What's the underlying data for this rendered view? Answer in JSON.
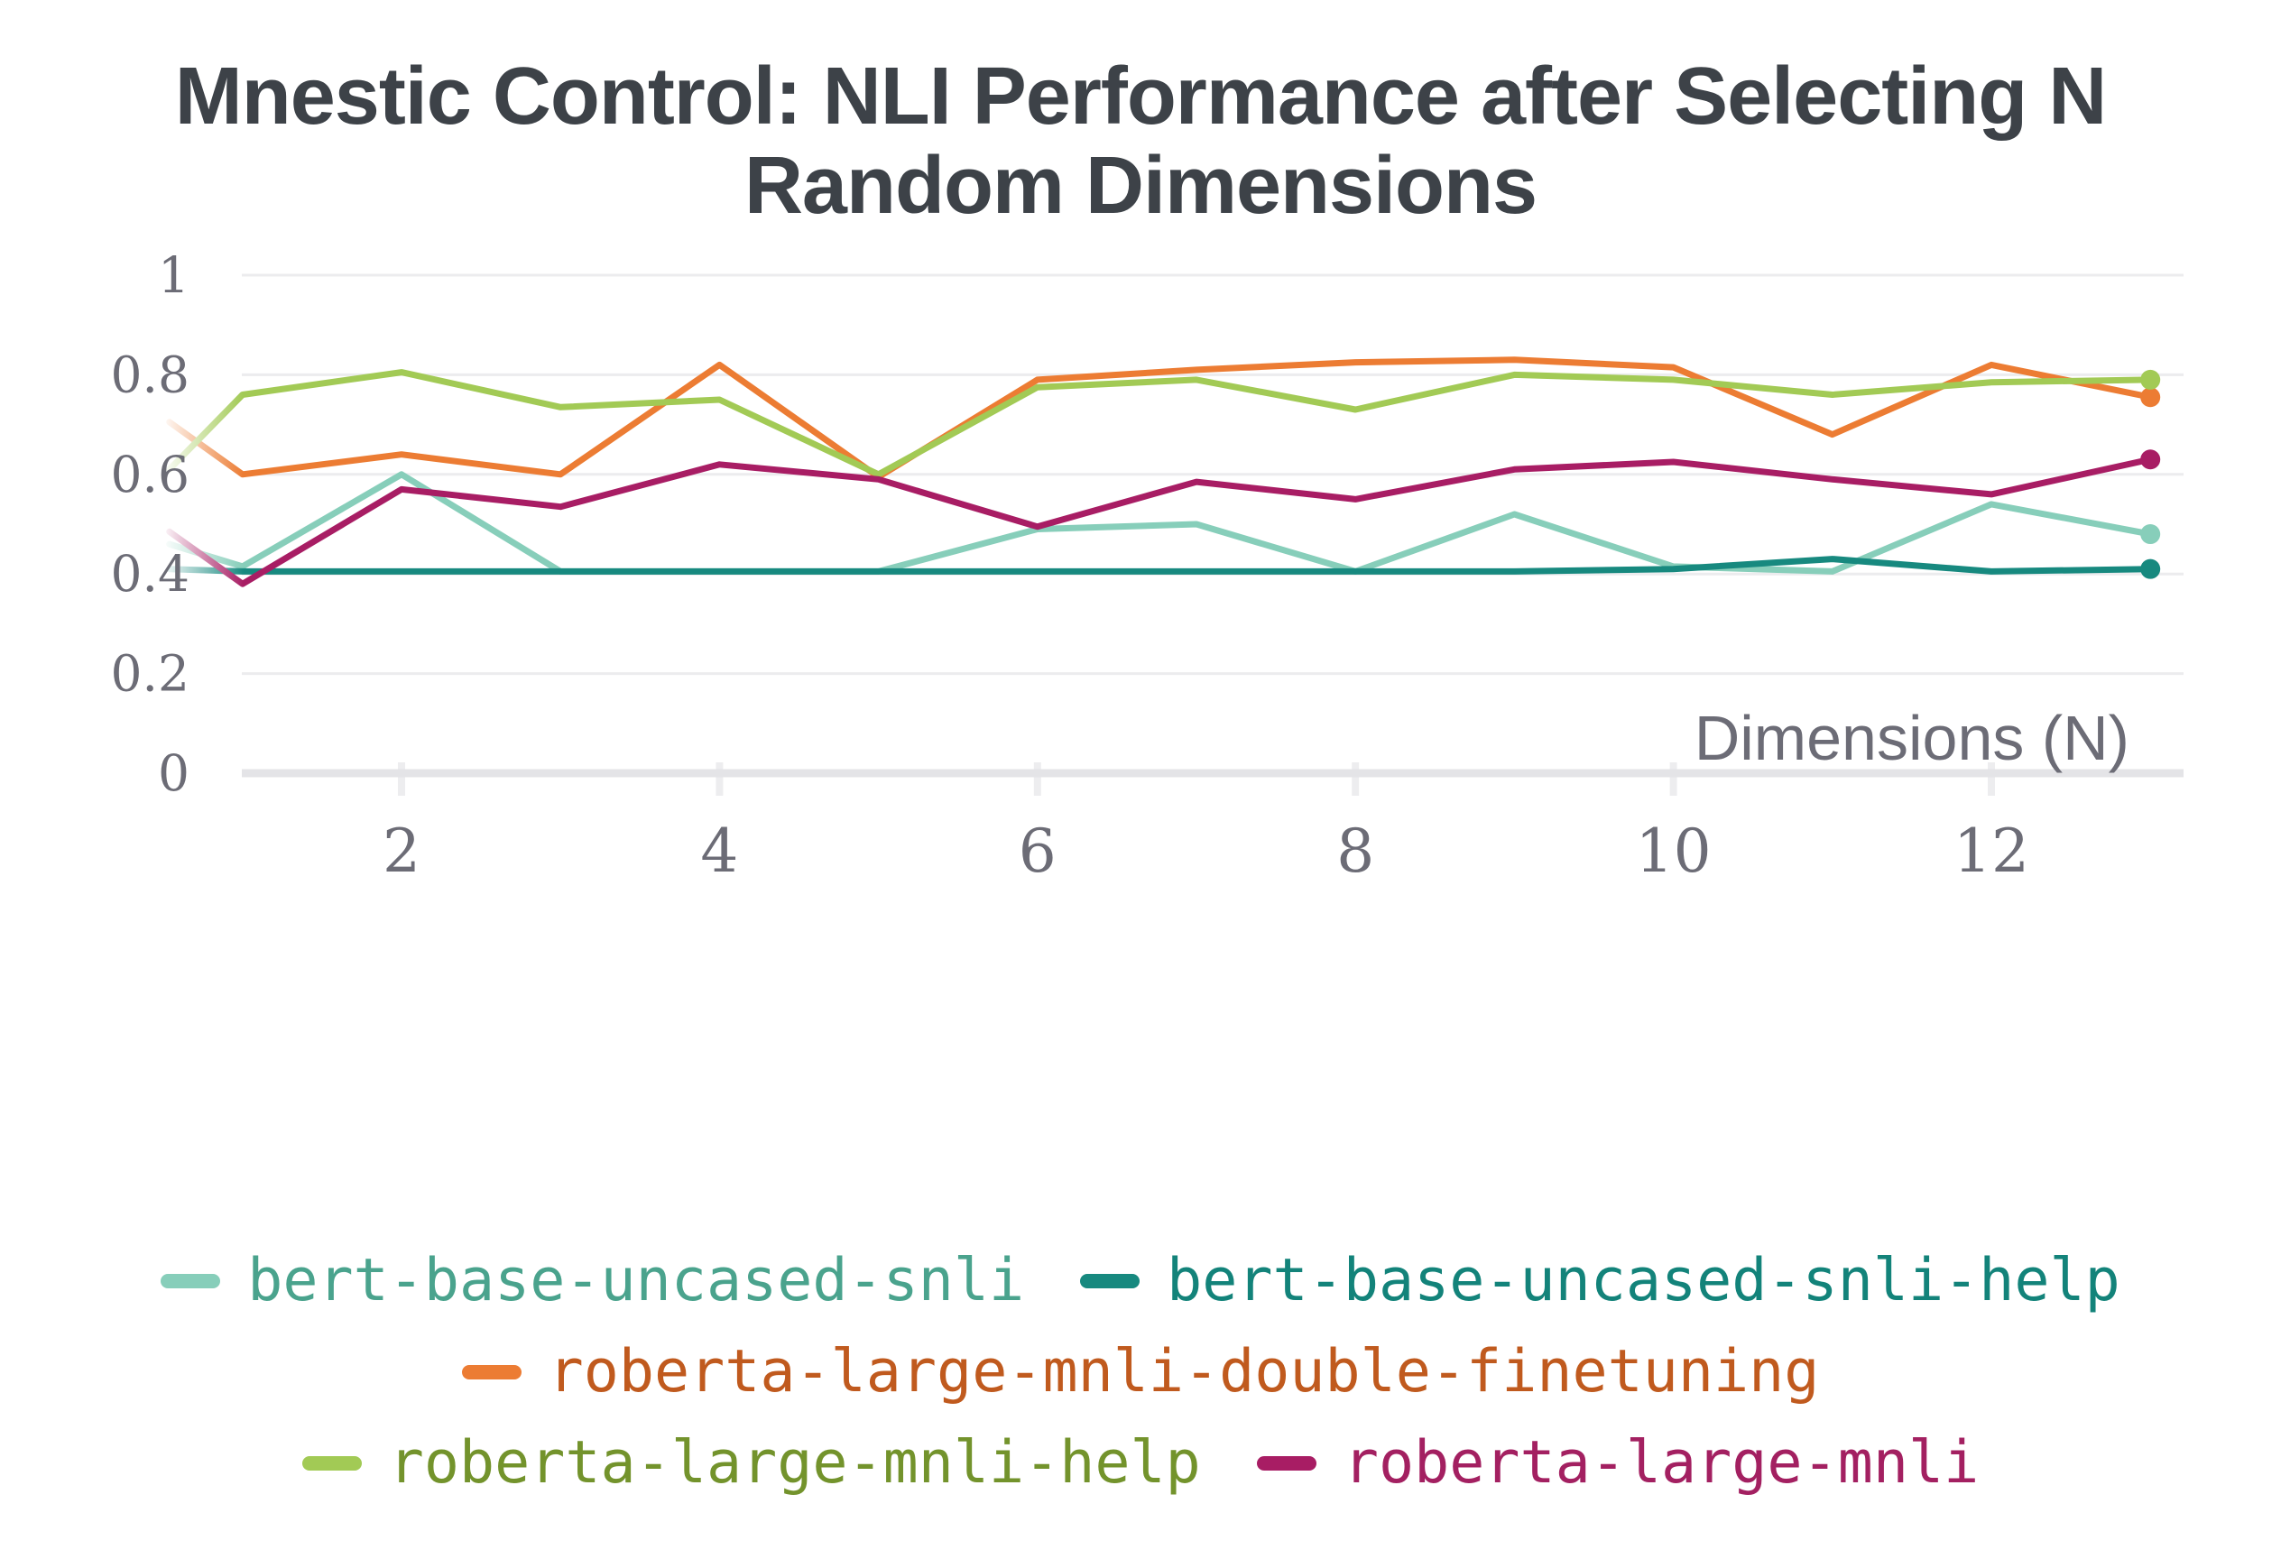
{
  "title": "Mnestic Control: NLI Performance after Selecting N Random Dimensions",
  "title_lines": [
    "Mnestic Control: NLI Performance after Selecting N",
    "Random Dimensions"
  ],
  "colors": {
    "background": "#ffffff",
    "title_text": "#3d4248",
    "tick_text": "#6c6c76",
    "axis_title_text": "#6c6c76",
    "gridline": "#ececee",
    "axis_line": "#e4e4e7",
    "tick_mark": "#ededef"
  },
  "chart_data": {
    "type": "line",
    "title": "Mnestic Control: NLI Performance after Selecting N Random Dimensions",
    "xlabel": "Dimensions (N)",
    "ylabel": "",
    "x": [
      1,
      2,
      3,
      4,
      5,
      6,
      7,
      8,
      9,
      10,
      11,
      12,
      13
    ],
    "xticks": [
      2,
      4,
      6,
      8,
      10,
      12
    ],
    "xtick_labels": [
      "2",
      "4",
      "6",
      "8",
      "10",
      "12"
    ],
    "yticks": [
      0,
      0.2,
      0.4,
      0.6,
      0.8,
      1
    ],
    "ytick_labels": [
      "0",
      "0.2",
      "0.4",
      "0.6",
      "0.8",
      "1"
    ],
    "ylim": [
      0,
      1
    ],
    "grid": true,
    "legend_position": "bottom",
    "left_edge_fade": true,
    "series": [
      {
        "name": "bert-base-uncased-snli",
        "color": "#87ceba",
        "label_color": "#4aa38d",
        "edge_stub_value": 0.46,
        "values": [
          0.415,
          0.6,
          0.405,
          0.405,
          0.405,
          0.49,
          0.5,
          0.405,
          0.52,
          0.415,
          0.405,
          0.54,
          0.48
        ]
      },
      {
        "name": "bert-base-uncased-snli-help",
        "color": "#17897f",
        "label_color": "#13837a",
        "edge_stub_value": 0.41,
        "values": [
          0.405,
          0.405,
          0.405,
          0.405,
          0.405,
          0.405,
          0.405,
          0.405,
          0.405,
          0.41,
          0.43,
          0.405,
          0.41
        ]
      },
      {
        "name": "roberta-large-mnli-double-finetuning",
        "color": "#ec7c33",
        "label_color": "#c05a1e",
        "edge_stub_value": 0.705,
        "values": [
          0.6,
          0.64,
          0.6,
          0.82,
          0.595,
          0.79,
          0.81,
          0.825,
          0.83,
          0.815,
          0.68,
          0.82,
          0.755
        ]
      },
      {
        "name": "roberta-large-mnli-help",
        "color": "#a2ca55",
        "label_color": "#73932c",
        "edge_stub_value": 0.61,
        "values": [
          0.76,
          0.805,
          0.735,
          0.75,
          0.6,
          0.775,
          0.79,
          0.73,
          0.8,
          0.79,
          0.76,
          0.785,
          0.79
        ]
      },
      {
        "name": "roberta-large-mnli",
        "color": "#a81d64",
        "label_color": "#a32061",
        "edge_stub_value": 0.485,
        "values": [
          0.38,
          0.57,
          0.535,
          0.62,
          0.59,
          0.495,
          0.585,
          0.55,
          0.61,
          0.625,
          0.59,
          0.56,
          0.63
        ]
      }
    ]
  },
  "legend": {
    "rows": [
      [
        0,
        1
      ],
      [
        2
      ],
      [
        3,
        4
      ]
    ]
  }
}
